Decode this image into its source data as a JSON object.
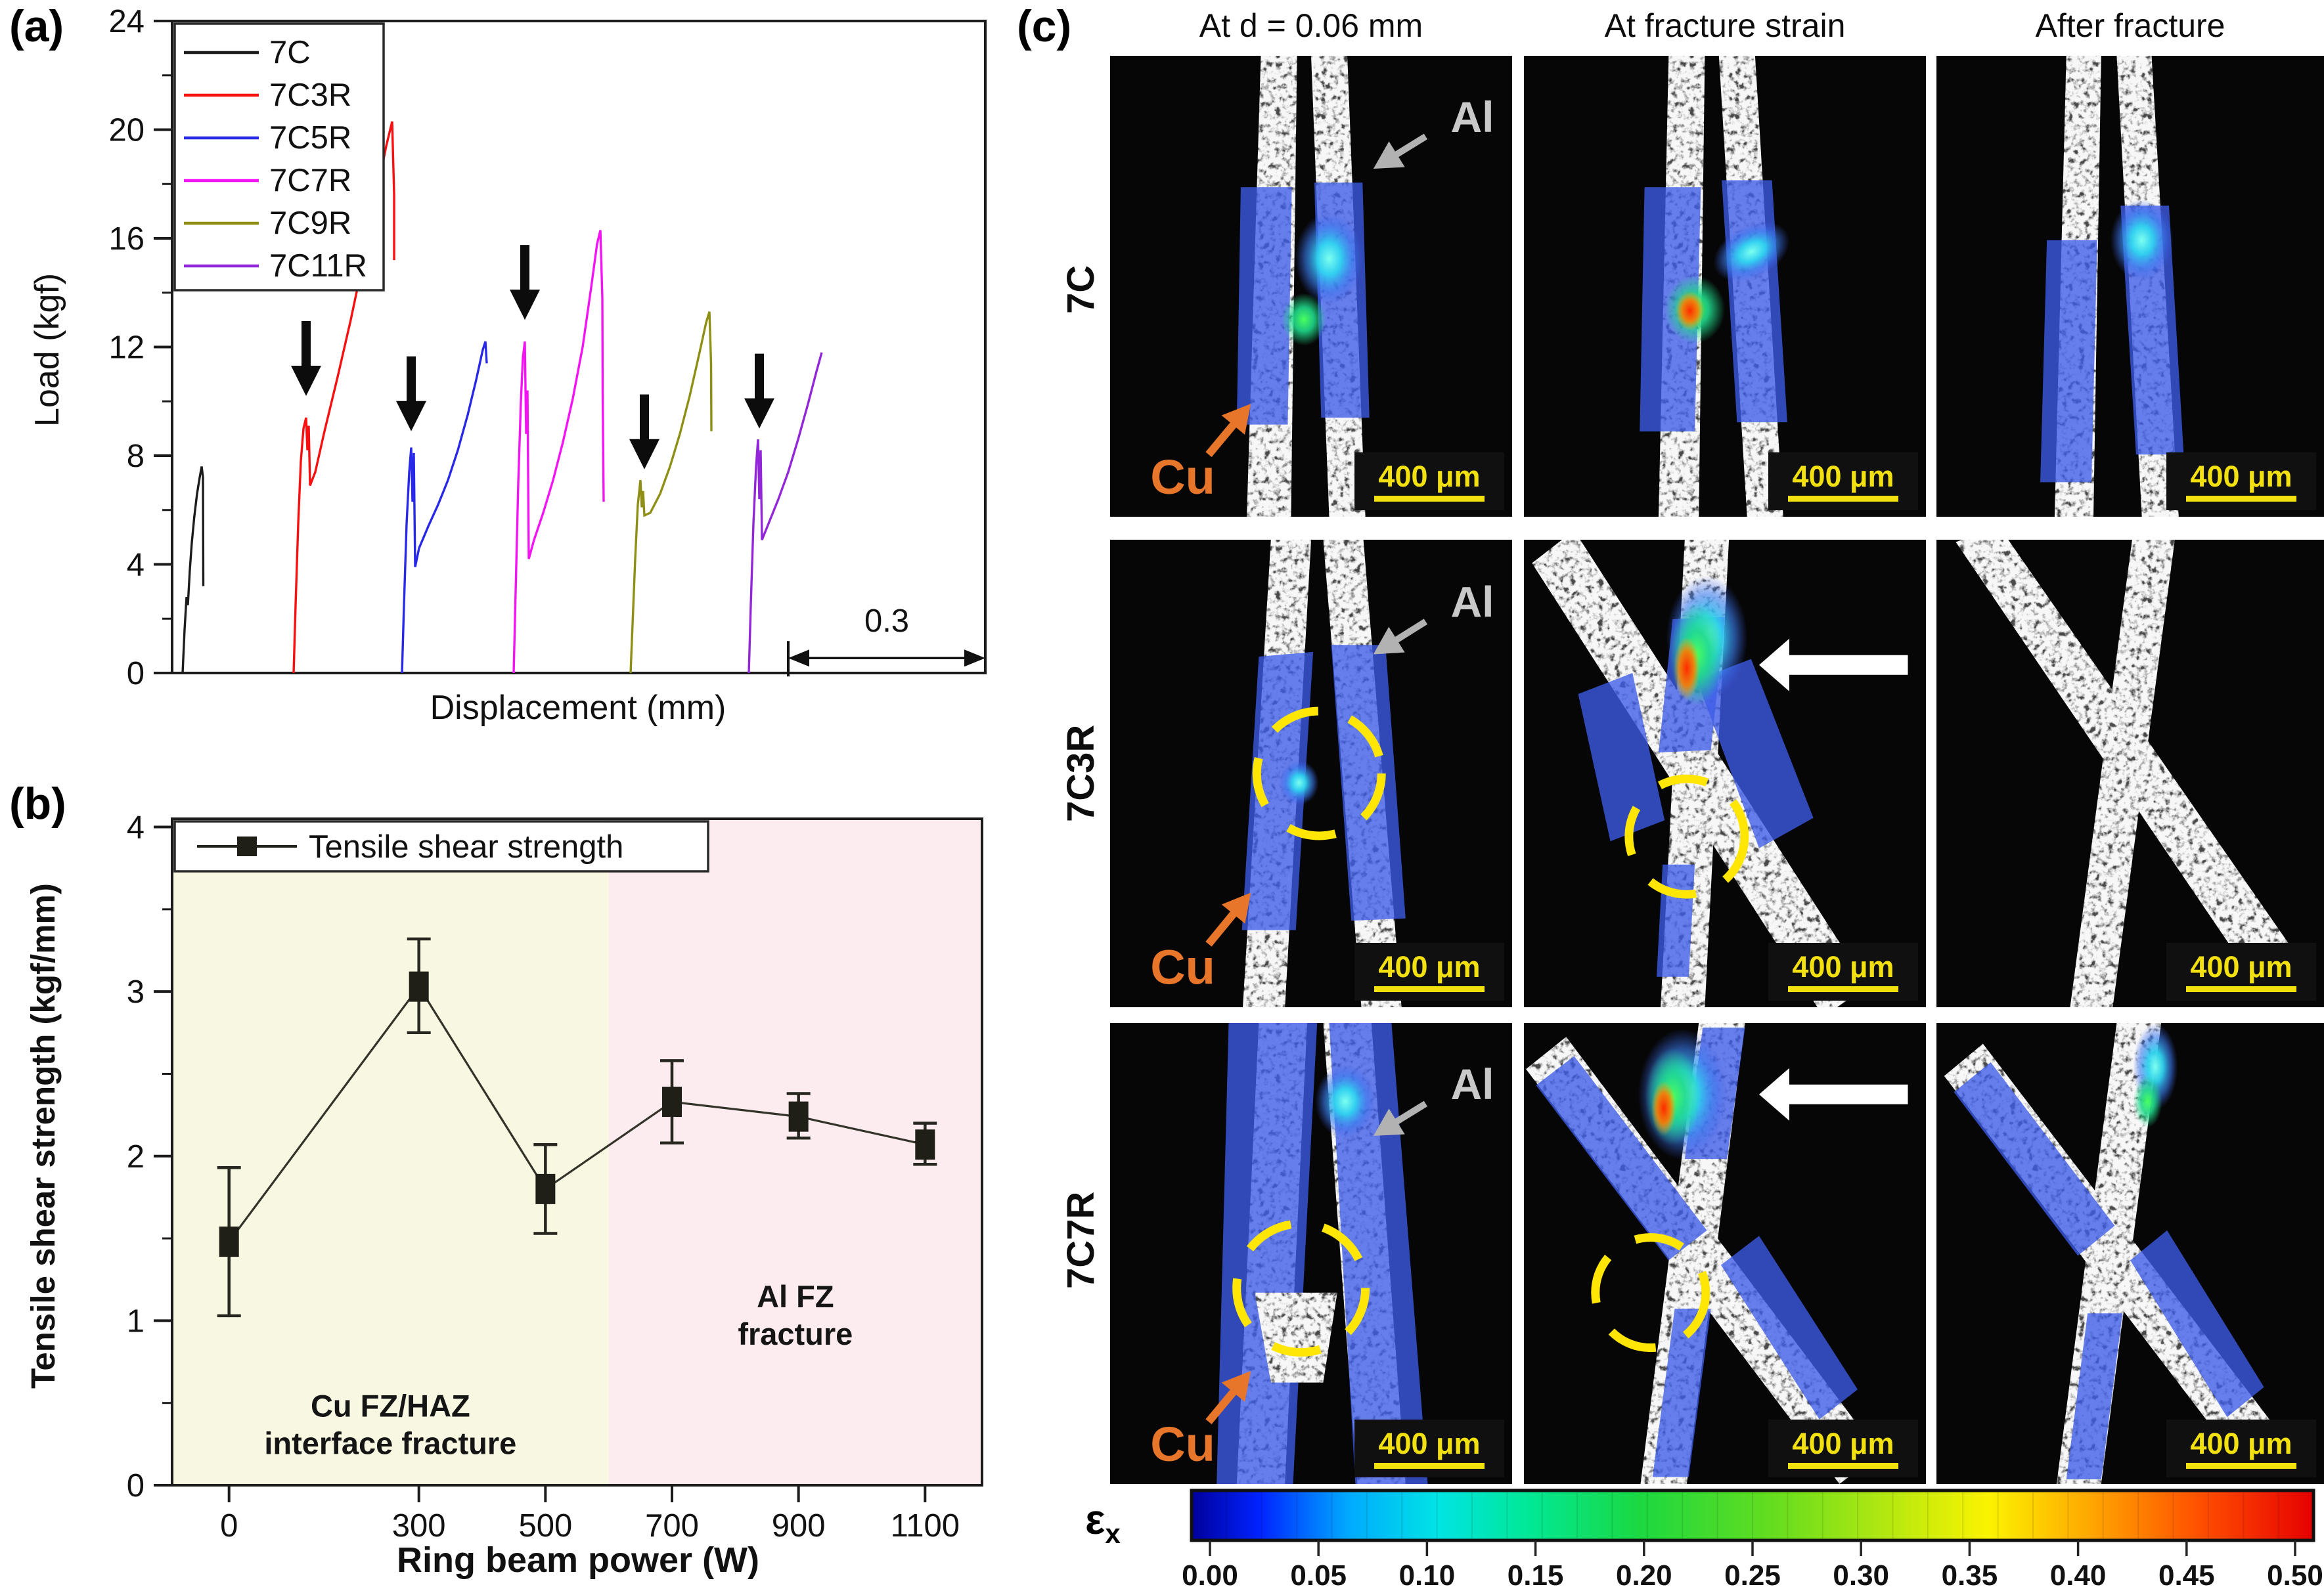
{
  "panel_a": {
    "label": "(a)",
    "y_label": "Load (kgf)",
    "x_label": "Displacement (mm)",
    "y_ticks": [
      0,
      4,
      8,
      12,
      16,
      20,
      24
    ],
    "scale_bar_label": "0.3"
  },
  "panel_b": {
    "label": "(b)",
    "y_label": "Tensile shear strength (kgf/mm)",
    "x_label": "Ring beam power (W)",
    "y_ticks": [
      0,
      1,
      2,
      3,
      4
    ],
    "x_ticks": [
      "0",
      "300",
      "500",
      "700",
      "900",
      "1100"
    ]
  },
  "panel_c": {
    "label": "(c)",
    "col_headers": [
      "At d = 0.06 mm",
      "At fracture strain",
      "After fracture"
    ],
    "row_labels": [
      "7C",
      "7C3R",
      "7C7R"
    ],
    "al_label": "Al",
    "cu_label": "Cu",
    "scale_label": "400 μm",
    "colorbar": {
      "label": "ε",
      "sub": "x",
      "ticks": [
        "0.00",
        "0.05",
        "0.10",
        "0.15",
        "0.20",
        "0.25",
        "0.30",
        "0.35",
        "0.40",
        "0.45",
        "0.50"
      ]
    },
    "cells": [
      {
        "row": "7C",
        "column": "At d = 0.06 mm",
        "al_cu_labels": true,
        "dashed_circle": false,
        "white_arrow": false,
        "strain_overlay": true
      },
      {
        "row": "7C",
        "column": "At fracture strain",
        "al_cu_labels": false,
        "dashed_circle": false,
        "white_arrow": false,
        "strain_overlay": true
      },
      {
        "row": "7C",
        "column": "After fracture",
        "al_cu_labels": false,
        "dashed_circle": false,
        "white_arrow": false,
        "strain_overlay": true
      },
      {
        "row": "7C3R",
        "column": "At d = 0.06 mm",
        "al_cu_labels": true,
        "dashed_circle": true,
        "white_arrow": false,
        "strain_overlay": true
      },
      {
        "row": "7C3R",
        "column": "At fracture strain",
        "al_cu_labels": false,
        "dashed_circle": true,
        "white_arrow": true,
        "strain_overlay": true
      },
      {
        "row": "7C3R",
        "column": "After fracture",
        "al_cu_labels": false,
        "dashed_circle": false,
        "white_arrow": false,
        "strain_overlay": false
      },
      {
        "row": "7C7R",
        "column": "At d = 0.06 mm",
        "al_cu_labels": true,
        "dashed_circle": true,
        "white_arrow": false,
        "strain_overlay": true
      },
      {
        "row": "7C7R",
        "column": "At fracture strain",
        "al_cu_labels": false,
        "dashed_circle": true,
        "white_arrow": true,
        "strain_overlay": true
      },
      {
        "row": "7C7R",
        "column": "After fracture",
        "al_cu_labels": false,
        "dashed_circle": false,
        "white_arrow": false,
        "strain_overlay": true
      }
    ]
  },
  "colors": {
    "region_yellow": "#f8f8e2",
    "region_pink": "#fdecef",
    "dic_blue": "#3d5ce8",
    "annotation_yellow": "#ffe605",
    "scale_text_yellow": "#f2e10e",
    "cu_orange": "#e8762a",
    "al_gray": "#c9c9c9",
    "jet_offsets": [
      0,
      0.06,
      0.14,
      0.22,
      0.3,
      0.4,
      0.52,
      0.62,
      0.71,
      0.8,
      0.9,
      1
    ],
    "jet_colors": [
      "#00009a",
      "#0022ff",
      "#00aaff",
      "#00e4e4",
      "#00e896",
      "#1cd840",
      "#66dd1e",
      "#b4e810",
      "#fbf300",
      "#ffa800",
      "#ff4e00",
      "#e60000"
    ]
  },
  "chart_data": [
    {
      "type": "line",
      "title": "Load vs displacement curves of lap shear tests",
      "xlabel": "Displacement (mm)",
      "ylabel": "Load (kgf)",
      "xlim": [
        0,
        1.238
      ],
      "ylim": [
        0,
        24
      ],
      "y_ticks": [
        0,
        4,
        8,
        12,
        16,
        20,
        24
      ],
      "x_ticks_shown": false,
      "grid": false,
      "legend_position": "top-left-inside",
      "scale_bar": {
        "x1": 0.938,
        "x2": 1.238,
        "y": 0.55,
        "label": "0.3"
      },
      "arrows": [
        {
          "x": 0.204,
          "tip_y": 10.2
        },
        {
          "x": 0.364,
          "tip_y": 8.9
        },
        {
          "x": 0.537,
          "tip_y": 13.0
        },
        {
          "x": 0.719,
          "tip_y": 7.5
        },
        {
          "x": 0.894,
          "tip_y": 9.0
        }
      ],
      "series": [
        {
          "name": "7C",
          "color": "#1c1c1c",
          "points": [
            [
              0.016,
              0
            ],
            [
              0.019,
              1.6
            ],
            [
              0.022,
              2.8
            ],
            [
              0.024,
              2.5
            ],
            [
              0.027,
              3.8
            ],
            [
              0.03,
              4.8
            ],
            [
              0.034,
              5.8
            ],
            [
              0.038,
              6.6
            ],
            [
              0.042,
              7.2
            ],
            [
              0.045,
              7.6
            ],
            [
              0.047,
              7.2
            ],
            [
              0.0475,
              3.2
            ]
          ]
        },
        {
          "name": "7C3R",
          "color": "#f80f0f",
          "points": [
            [
              0.185,
              0
            ],
            [
              0.188,
              2.5
            ],
            [
              0.192,
              5.5
            ],
            [
              0.196,
              7.8
            ],
            [
              0.2,
              9.0
            ],
            [
              0.204,
              9.4
            ],
            [
              0.206,
              8.2
            ],
            [
              0.208,
              9.1
            ],
            [
              0.21,
              6.9
            ],
            [
              0.218,
              7.4
            ],
            [
              0.232,
              8.9
            ],
            [
              0.252,
              10.9
            ],
            [
              0.272,
              13.0
            ],
            [
              0.292,
              15.3
            ],
            [
              0.312,
              17.7
            ],
            [
              0.326,
              19.4
            ],
            [
              0.335,
              20.3
            ],
            [
              0.338,
              17.6
            ],
            [
              0.338,
              15.2
            ]
          ]
        },
        {
          "name": "7C5R",
          "color": "#2828e8",
          "points": [
            [
              0.35,
              0
            ],
            [
              0.353,
              2.5
            ],
            [
              0.357,
              5.5
            ],
            [
              0.361,
              7.4
            ],
            [
              0.364,
              8.3
            ],
            [
              0.366,
              6.3
            ],
            [
              0.368,
              8.1
            ],
            [
              0.37,
              3.9
            ],
            [
              0.376,
              4.6
            ],
            [
              0.39,
              5.4
            ],
            [
              0.405,
              6.2
            ],
            [
              0.42,
              7.1
            ],
            [
              0.435,
              8.2
            ],
            [
              0.45,
              9.5
            ],
            [
              0.463,
              10.8
            ],
            [
              0.473,
              11.9
            ],
            [
              0.477,
              12.2
            ],
            [
              0.479,
              11.4
            ]
          ]
        },
        {
          "name": "7C7R",
          "color": "#f513f5",
          "points": [
            [
              0.52,
              0
            ],
            [
              0.523,
              3.0
            ],
            [
              0.527,
              7.0
            ],
            [
              0.531,
              10.0
            ],
            [
              0.534,
              11.6
            ],
            [
              0.537,
              12.2
            ],
            [
              0.539,
              8.8
            ],
            [
              0.541,
              10.4
            ],
            [
              0.543,
              4.2
            ],
            [
              0.551,
              4.9
            ],
            [
              0.565,
              5.9
            ],
            [
              0.58,
              7.1
            ],
            [
              0.595,
              8.5
            ],
            [
              0.61,
              10.1
            ],
            [
              0.625,
              12.0
            ],
            [
              0.638,
              14.2
            ],
            [
              0.647,
              15.8
            ],
            [
              0.652,
              16.3
            ],
            [
              0.655,
              13.8
            ],
            [
              0.6555,
              10.3
            ],
            [
              0.657,
              6.3
            ]
          ]
        },
        {
          "name": "7C9R",
          "color": "#8f8f16",
          "points": [
            [
              0.698,
              0
            ],
            [
              0.701,
              1.8
            ],
            [
              0.705,
              4.2
            ],
            [
              0.709,
              6.2
            ],
            [
              0.713,
              7.1
            ],
            [
              0.715,
              6.1
            ],
            [
              0.717,
              6.7
            ],
            [
              0.719,
              5.8
            ],
            [
              0.728,
              5.9
            ],
            [
              0.743,
              6.6
            ],
            [
              0.758,
              7.6
            ],
            [
              0.773,
              8.8
            ],
            [
              0.788,
              10.2
            ],
            [
              0.803,
              11.8
            ],
            [
              0.813,
              12.9
            ],
            [
              0.818,
              13.3
            ],
            [
              0.8205,
              11.4
            ],
            [
              0.821,
              8.9
            ]
          ]
        },
        {
          "name": "7C11R",
          "color": "#9326d9",
          "points": [
            [
              0.878,
              0
            ],
            [
              0.881,
              2.5
            ],
            [
              0.885,
              5.5
            ],
            [
              0.889,
              7.6
            ],
            [
              0.892,
              8.6
            ],
            [
              0.894,
              6.4
            ],
            [
              0.896,
              8.2
            ],
            [
              0.898,
              4.9
            ],
            [
              0.908,
              5.5
            ],
            [
              0.923,
              6.4
            ],
            [
              0.938,
              7.4
            ],
            [
              0.953,
              8.6
            ],
            [
              0.968,
              9.9
            ],
            [
              0.981,
              11.1
            ],
            [
              0.989,
              11.8
            ]
          ]
        }
      ]
    },
    {
      "type": "line",
      "title": "Tensile shear strength vs ring beam power",
      "xlabel": "Ring beam power (W)",
      "ylabel": "Tensile shear strength (kgf/mm)",
      "legend": "Tensile shear strength",
      "xlim": [
        -90,
        1190
      ],
      "ylim": [
        0,
        4.05
      ],
      "y_ticks": [
        0,
        1,
        2,
        3,
        4
      ],
      "categories": [
        0,
        300,
        500,
        700,
        900,
        1100
      ],
      "values": [
        1.48,
        3.03,
        1.8,
        2.33,
        2.24,
        2.07
      ],
      "error_upper": [
        0.45,
        0.29,
        0.27,
        0.25,
        0.14,
        0.13
      ],
      "error_lower": [
        0.45,
        0.28,
        0.27,
        0.25,
        0.13,
        0.12
      ],
      "marker": "filled-square",
      "line_color": "#33332a",
      "regions": [
        {
          "label_line1": "Cu FZ/HAZ",
          "label_line2": "interface fracture",
          "x_from": -90,
          "x_to": 600,
          "color": "#f8f8e2"
        },
        {
          "label_line1": "Al FZ",
          "label_line2": "fracture",
          "x_from": 600,
          "x_to": 1190,
          "color": "#fdecef"
        }
      ]
    }
  ]
}
